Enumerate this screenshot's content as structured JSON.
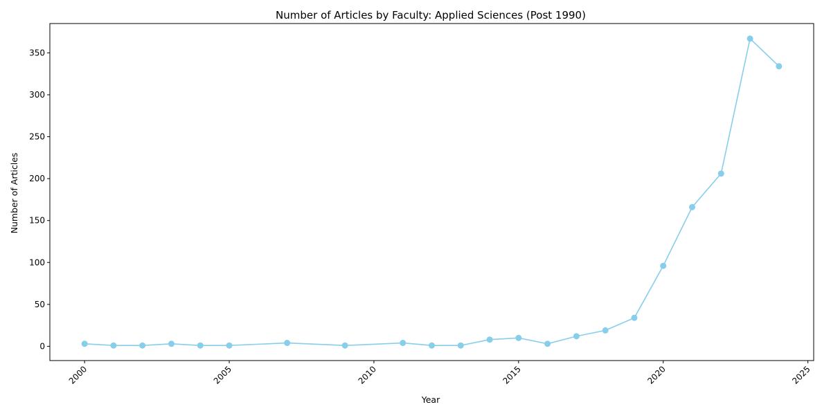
{
  "chart_data": {
    "type": "line",
    "title": "Number of Articles by Faculty: Applied Sciences (Post 1990)",
    "xlabel": "Year",
    "ylabel": "Number of Articles",
    "xlim": [
      1998.8,
      2025.2
    ],
    "ylim": [
      -17,
      385
    ],
    "x_ticks": [
      2000,
      2005,
      2010,
      2015,
      2020,
      2025
    ],
    "y_ticks": [
      0,
      50,
      100,
      150,
      200,
      250,
      300,
      350
    ],
    "x_tick_rotation": 45,
    "grid": false,
    "legend": "none",
    "color": "#87CEEB",
    "series": [
      {
        "x": [
          2000,
          2001,
          2002,
          2003,
          2004,
          2005,
          2007,
          2009,
          2011,
          2012,
          2013,
          2014,
          2015,
          2016,
          2017,
          2018,
          2019,
          2020,
          2021,
          2022,
          2023,
          2024
        ],
        "values": [
          3,
          1,
          1,
          3,
          1,
          1,
          4,
          1,
          4,
          1,
          1,
          8,
          10,
          3,
          12,
          19,
          34,
          96,
          166,
          206,
          367,
          334
        ]
      }
    ]
  }
}
